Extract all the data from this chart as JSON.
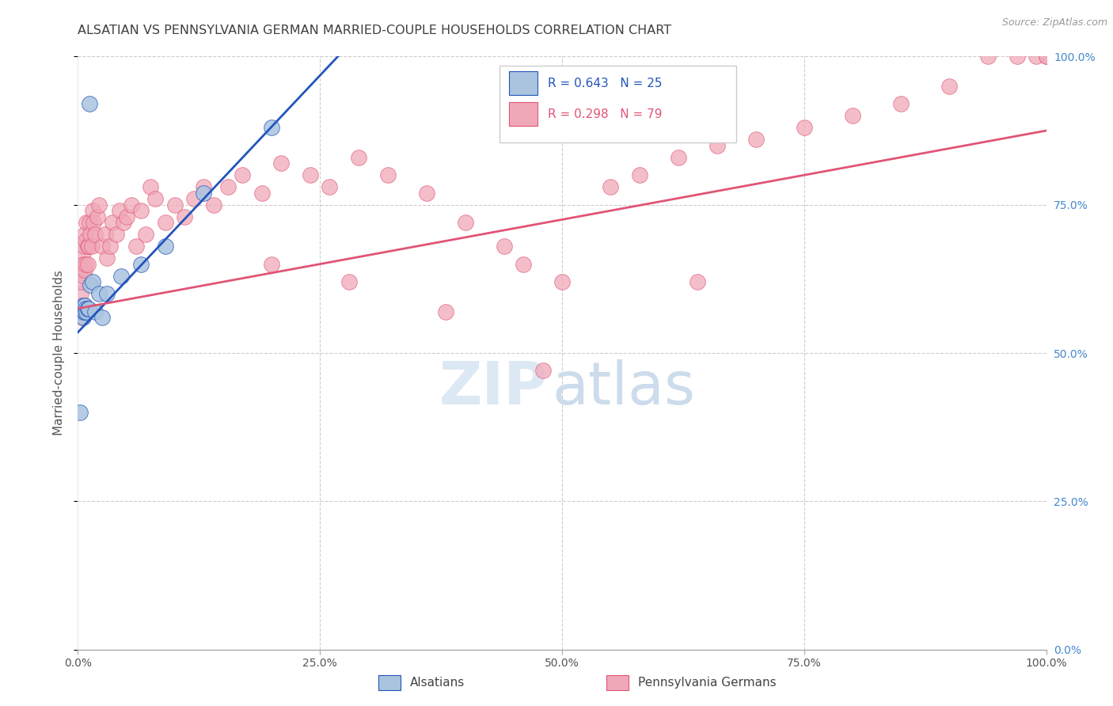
{
  "title": "ALSATIAN VS PENNSYLVANIA GERMAN MARRIED-COUPLE HOUSEHOLDS CORRELATION CHART",
  "source": "Source: ZipAtlas.com",
  "ylabel": "Married-couple Households",
  "xlim": [
    0,
    1.0
  ],
  "ylim": [
    0,
    1.0
  ],
  "alsatian_R": "0.643",
  "alsatian_N": "25",
  "pg_R": "0.298",
  "pg_N": "79",
  "blue_color": "#aac4e0",
  "pink_color": "#f0a8b8",
  "blue_line_color": "#2255bb",
  "pink_line_color": "#e05575",
  "legend_R_blue": "#2255bb",
  "legend_R_pink": "#e05575",
  "background_color": "#ffffff",
  "grid_color": "#cccccc",
  "title_color": "#404040",
  "source_color": "#999999",
  "right_tick_color": "#4488cc",
  "bottom_tick_color": "#555555",
  "alsatian_x": [
    0.002,
    0.003,
    0.004,
    0.005,
    0.005,
    0.006,
    0.007,
    0.007,
    0.008,
    0.009,
    0.01,
    0.01,
    0.011,
    0.012,
    0.013,
    0.015,
    0.018,
    0.022,
    0.025,
    0.03,
    0.045,
    0.065,
    0.09,
    0.13,
    0.2
  ],
  "alsatian_y": [
    0.4,
    0.57,
    0.57,
    0.56,
    0.58,
    0.57,
    0.58,
    0.57,
    0.575,
    0.57,
    0.575,
    0.575,
    0.575,
    0.92,
    0.615,
    0.62,
    0.57,
    0.6,
    0.56,
    0.6,
    0.63,
    0.65,
    0.68,
    0.77,
    0.88
  ],
  "pg_x": [
    0.002,
    0.003,
    0.003,
    0.004,
    0.004,
    0.005,
    0.005,
    0.006,
    0.006,
    0.007,
    0.007,
    0.007,
    0.008,
    0.008,
    0.009,
    0.01,
    0.01,
    0.011,
    0.012,
    0.013,
    0.014,
    0.015,
    0.016,
    0.018,
    0.02,
    0.022,
    0.025,
    0.028,
    0.03,
    0.033,
    0.036,
    0.04,
    0.043,
    0.047,
    0.05,
    0.055,
    0.06,
    0.065,
    0.07,
    0.075,
    0.08,
    0.09,
    0.1,
    0.11,
    0.12,
    0.13,
    0.14,
    0.155,
    0.17,
    0.19,
    0.21,
    0.24,
    0.26,
    0.29,
    0.32,
    0.36,
    0.4,
    0.44,
    0.46,
    0.5,
    0.55,
    0.58,
    0.62,
    0.66,
    0.7,
    0.75,
    0.8,
    0.85,
    0.9,
    0.94,
    0.97,
    0.99,
    1.0,
    1.0,
    0.2,
    0.28,
    0.38,
    0.48,
    0.64
  ],
  "pg_y": [
    0.58,
    0.6,
    0.62,
    0.64,
    0.56,
    0.67,
    0.65,
    0.63,
    0.68,
    0.58,
    0.64,
    0.7,
    0.65,
    0.69,
    0.72,
    0.68,
    0.65,
    0.68,
    0.72,
    0.7,
    0.68,
    0.74,
    0.72,
    0.7,
    0.73,
    0.75,
    0.68,
    0.7,
    0.66,
    0.68,
    0.72,
    0.7,
    0.74,
    0.72,
    0.73,
    0.75,
    0.68,
    0.74,
    0.7,
    0.78,
    0.76,
    0.72,
    0.75,
    0.73,
    0.76,
    0.78,
    0.75,
    0.78,
    0.8,
    0.77,
    0.82,
    0.8,
    0.78,
    0.83,
    0.8,
    0.77,
    0.72,
    0.68,
    0.65,
    0.62,
    0.78,
    0.8,
    0.83,
    0.85,
    0.86,
    0.88,
    0.9,
    0.92,
    0.95,
    1.0,
    1.0,
    1.0,
    1.0,
    1.0,
    0.65,
    0.62,
    0.57,
    0.47,
    0.62
  ],
  "blue_trendline_x": [
    0.0,
    0.28
  ],
  "blue_trendline_y": [
    0.535,
    1.02
  ],
  "pink_trendline_x": [
    0.0,
    1.0
  ],
  "pink_trendline_y": [
    0.575,
    0.875
  ]
}
